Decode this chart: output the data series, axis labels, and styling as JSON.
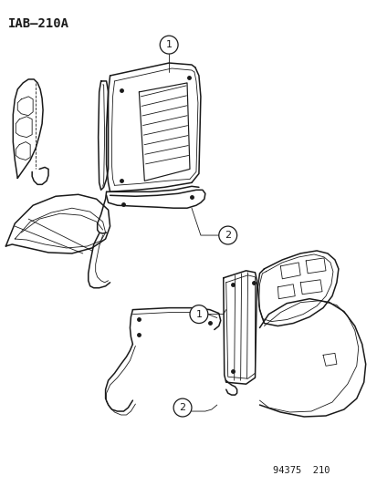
{
  "title": "IAB–210A",
  "footer": "94375  210",
  "bg_color": "#ffffff",
  "line_color": "#1a1a1a",
  "title_fontsize": 10,
  "footer_fontsize": 7.5,
  "callout_fontsize": 8,
  "fig_width": 4.14,
  "fig_height": 5.33,
  "dpi": 100
}
